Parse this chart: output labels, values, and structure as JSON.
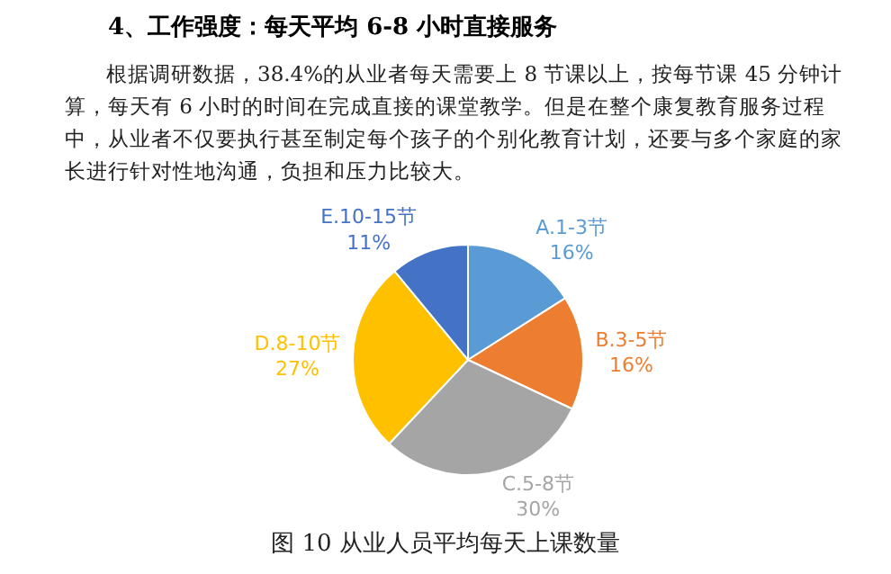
{
  "chart_data": {
    "type": "pie",
    "title": "4、工作强度：每天平均 6-8 小时直接服务",
    "subtitle": "根据调研数据，38.4%的从业者每天需要上 8 节课以上，按每节课 45 分钟计算，每天有 6 小时的时间在完成直接的课堂教学。但是在整个康复教育服务过程中，从业者不仅要执行甚至制定每个孩子的个别化教育计划，还要与多个家庭的家长进行针对性地沟通，负担和压力比较大。",
    "categories": [
      "A.1-3节",
      "B.3-5节",
      "C.5-8节",
      "D.8-10节",
      "E.10-15节"
    ],
    "values": [
      16,
      16,
      30,
      27,
      11
    ],
    "value_labels": [
      "16%",
      "16%",
      "30%",
      "27%",
      "11%"
    ],
    "colors": [
      "#5b9bd5",
      "#ed7d31",
      "#a5a5a5",
      "#ffc000",
      "#4472c4"
    ],
    "legend": false,
    "annotations": [
      "图 10 从业人员平均每天上课数量"
    ]
  }
}
